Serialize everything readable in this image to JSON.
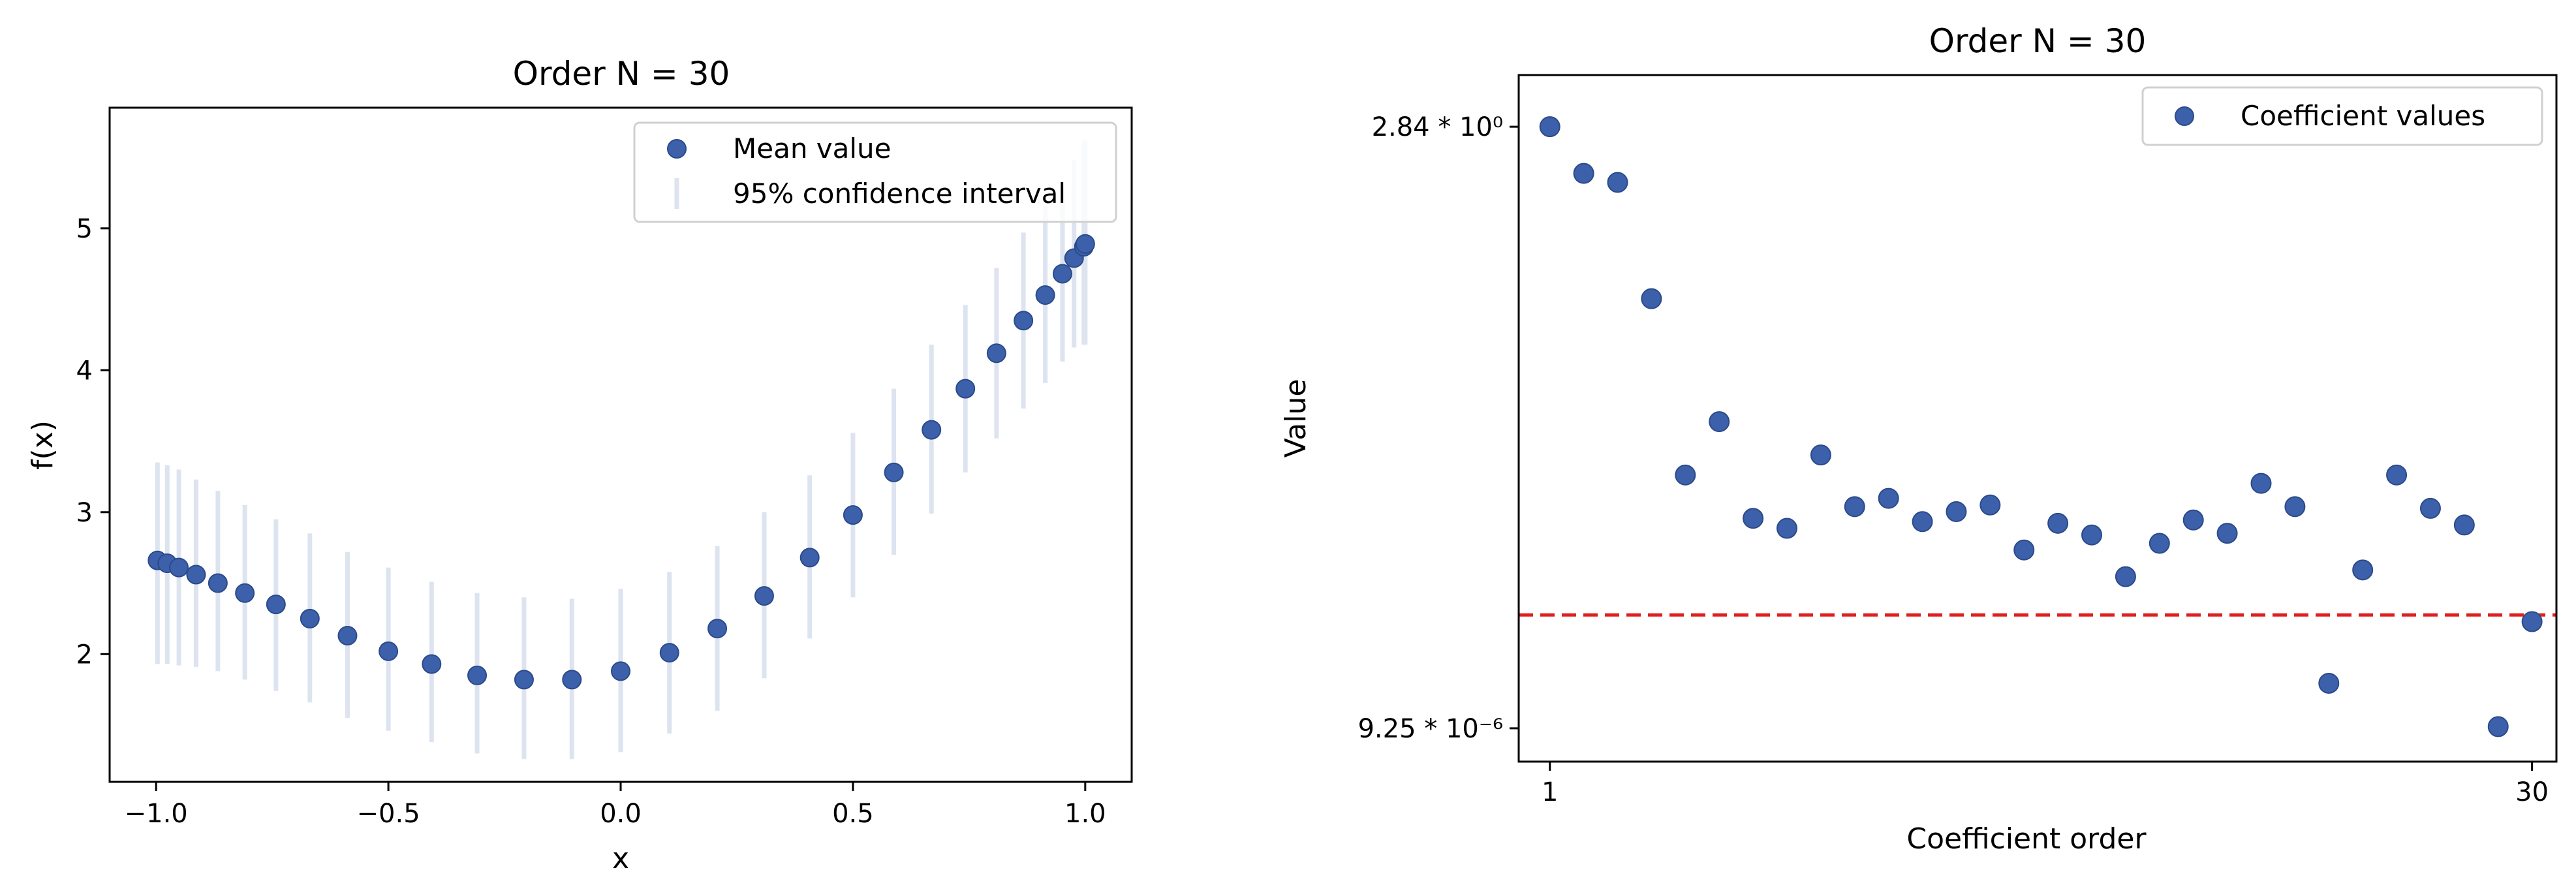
{
  "colors": {
    "marker": "#3d60ab",
    "marker_edge": "#2b4a8a",
    "ci": "#dde4f0",
    "red_line": "#e0201f",
    "axes": "#000000"
  },
  "chart_data": [
    {
      "type": "scatter",
      "title": "Order N = 30",
      "xlabel": "x",
      "ylabel": "f(x)",
      "xlim": [
        -1.1,
        1.1
      ],
      "ylim": [
        1.1,
        5.85
      ],
      "xticks": [
        -1.0,
        -0.5,
        0.0,
        0.5,
        1.0
      ],
      "xtick_labels": [
        "−1.0",
        "−0.5",
        "0.0",
        "0.5",
        "1.0"
      ],
      "yticks": [
        2,
        3,
        4,
        5
      ],
      "ytick_labels": [
        "2",
        "3",
        "4",
        "5"
      ],
      "legend": {
        "placement": "top-right",
        "entries": [
          "Mean value",
          "95% confidence interval"
        ]
      },
      "series": [
        {
          "name": "Mean value",
          "x": [
            -0.997,
            -0.976,
            -0.951,
            -0.914,
            -0.867,
            -0.809,
            -0.742,
            -0.669,
            -0.588,
            -0.5,
            -0.407,
            -0.309,
            -0.208,
            -0.105,
            0.0,
            0.105,
            0.208,
            0.309,
            0.407,
            0.5,
            0.588,
            0.669,
            0.742,
            0.809,
            0.867,
            0.914,
            0.951,
            0.976,
            0.997,
            1.0
          ],
          "y": [
            2.66,
            2.64,
            2.61,
            2.56,
            2.5,
            2.43,
            2.35,
            2.25,
            2.13,
            2.02,
            1.93,
            1.85,
            1.82,
            1.82,
            1.88,
            2.01,
            2.18,
            2.41,
            2.68,
            2.98,
            3.28,
            3.58,
            3.87,
            4.12,
            4.35,
            4.53,
            4.68,
            4.79,
            4.87,
            4.89
          ],
          "ci_low": [
            1.93,
            1.93,
            1.92,
            1.91,
            1.88,
            1.82,
            1.74,
            1.66,
            1.55,
            1.46,
            1.38,
            1.3,
            1.26,
            1.26,
            1.31,
            1.44,
            1.6,
            1.83,
            2.11,
            2.4,
            2.7,
            2.99,
            3.28,
            3.52,
            3.73,
            3.91,
            4.06,
            4.16,
            4.18,
            4.18
          ],
          "ci_high": [
            3.35,
            3.33,
            3.3,
            3.23,
            3.15,
            3.05,
            2.95,
            2.85,
            2.72,
            2.61,
            2.51,
            2.43,
            2.4,
            2.39,
            2.46,
            2.58,
            2.76,
            3.0,
            3.26,
            3.56,
            3.87,
            4.18,
            4.46,
            4.72,
            4.97,
            5.16,
            5.3,
            5.48,
            5.6,
            5.62
          ]
        }
      ]
    },
    {
      "type": "scatter",
      "title": "Order N = 30",
      "xlabel": "Coefficient order",
      "ylabel": "Value",
      "xlim": [
        0.08,
        30.72
      ],
      "ylim": [
        -1.0,
        19.6
      ],
      "yscale": "log (tick labels shown only at extremes)",
      "xticks": [
        1,
        30
      ],
      "xtick_labels": [
        "1",
        "30"
      ],
      "yticks": [
        0,
        18.05
      ],
      "ytick_labels": [
        "9.25 * 10⁻⁶",
        "2.84 * 10⁰"
      ],
      "threshold_line": {
        "style": "dashed",
        "color": "red",
        "y": 3.4
      },
      "legend": {
        "placement": "top-right",
        "entries": [
          "Coefficient values"
        ]
      },
      "series": [
        {
          "name": "Coefficient values",
          "x": [
            1,
            2,
            3,
            4,
            5,
            6,
            7,
            8,
            9,
            10,
            11,
            12,
            13,
            14,
            15,
            16,
            17,
            18,
            19,
            20,
            21,
            22,
            23,
            24,
            25,
            26,
            27,
            28,
            29,
            30
          ],
          "y": [
            18.05,
            16.65,
            16.38,
            12.89,
            7.6,
            9.2,
            6.3,
            6.0,
            8.2,
            6.65,
            6.9,
            6.2,
            6.5,
            6.7,
            5.35,
            6.15,
            5.8,
            4.55,
            5.55,
            6.25,
            5.85,
            7.35,
            6.65,
            1.35,
            4.75,
            7.6,
            6.6,
            6.1,
            0.05,
            3.2
          ]
        }
      ]
    }
  ]
}
